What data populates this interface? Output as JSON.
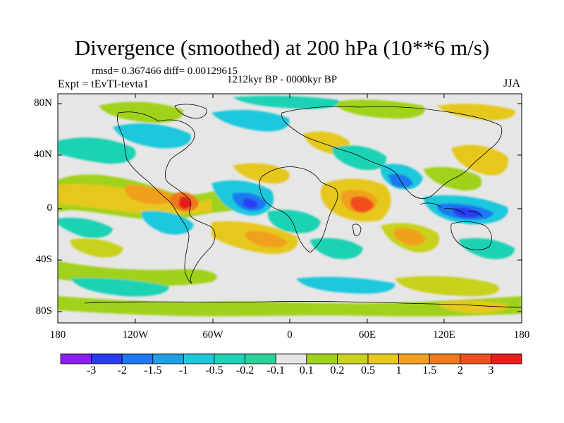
{
  "title": "Divergence (smoothed) at 200 hPa (10**6 m/s)",
  "stats": {
    "rmsd_label": "rmsd= 0.367466 diff= 0.00129615"
  },
  "experiment": "Expt = tEvTI-tevta1",
  "period": "1212kyr BP - 0000kyr BP",
  "season": "JJA",
  "lat_ticks": [
    "80N",
    "40N",
    "0",
    "40S",
    "80S"
  ],
  "lon_ticks": [
    "180",
    "120W",
    "60W",
    "0",
    "60E",
    "120E",
    "180"
  ],
  "colorbar": {
    "labels": [
      "-3",
      "-2",
      "-1.5",
      "-1",
      "-0.5",
      "-0.2",
      "-0.1",
      "0.1",
      "0.2",
      "0.5",
      "1",
      "1.5",
      "2",
      "3"
    ],
    "colors": [
      "#8a1ef0",
      "#2a3cf0",
      "#1e78f0",
      "#1ea0e6",
      "#1ec8dc",
      "#1ed2b4",
      "#28d29a",
      "#e6e6e6",
      "#a0d21e",
      "#c8d21e",
      "#e6c81e",
      "#f0a01e",
      "#f0781e",
      "#f0501e",
      "#e61e1e"
    ]
  }
}
